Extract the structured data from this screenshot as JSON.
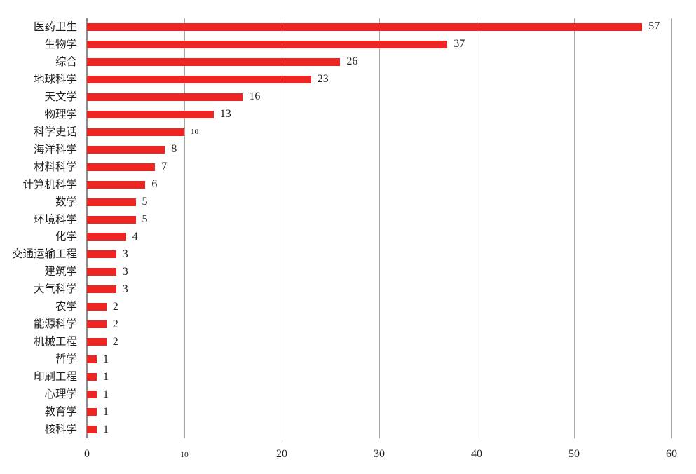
{
  "chart_data": {
    "type": "bar",
    "orientation": "horizontal",
    "title": "",
    "xlabel": "",
    "ylabel": "",
    "categories": [
      "医药卫生",
      "生物学",
      "综合",
      "地球科学",
      "天文学",
      "物理学",
      "科学史话",
      "海洋科学",
      "材料科学",
      "计算机科学",
      "数学",
      "环境科学",
      "化学",
      "交通运输工程",
      "建筑学",
      "大气科学",
      "农学",
      "能源科学",
      "机械工程",
      "哲学",
      "印刷工程",
      "心理学",
      "教育学",
      "核科学"
    ],
    "values": [
      57,
      37,
      26,
      23,
      16,
      13,
      10,
      8,
      7,
      6,
      5,
      5,
      4,
      3,
      3,
      3,
      2,
      2,
      2,
      1,
      1,
      1,
      1,
      1
    ],
    "data_labels": [
      57,
      37,
      26,
      23,
      16,
      13,
      10,
      8,
      7,
      6,
      5,
      5,
      4,
      3,
      3,
      3,
      2,
      2,
      2,
      1,
      1,
      1,
      1,
      1
    ],
    "xlim": [
      0,
      60
    ],
    "xticks": [
      0,
      10,
      20,
      30,
      40,
      50,
      60
    ],
    "grid": "vertical",
    "legend": "none",
    "bar_color": "#ED2624",
    "gridline_color": "#A6A6A6",
    "axis_line_color": "#8C8C8C",
    "text_color": "#1f1f1f",
    "small_value_label_categories": [
      "科学史话"
    ],
    "small_tick_labels": [
      10
    ]
  }
}
